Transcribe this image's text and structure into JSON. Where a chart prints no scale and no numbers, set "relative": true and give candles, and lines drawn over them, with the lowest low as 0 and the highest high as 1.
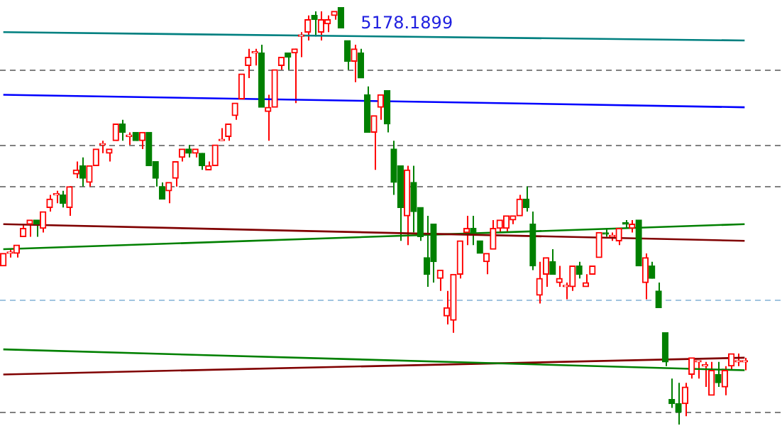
{
  "chart_data": {
    "type": "candlestick",
    "relative": true,
    "legend": false,
    "categories": [
      null,
      null,
      null,
      null,
      null,
      null,
      null,
      null,
      null,
      null,
      null,
      null,
      null,
      null,
      null,
      null,
      null,
      null,
      null,
      null,
      null,
      null,
      null,
      null,
      null,
      null,
      null,
      null,
      null,
      null,
      null,
      null,
      null,
      null,
      null,
      null,
      null,
      null,
      null,
      null,
      null,
      null,
      null,
      null,
      null,
      null,
      null,
      null,
      null,
      null,
      null,
      null,
      null,
      null,
      null,
      null,
      null,
      null,
      null,
      null,
      null,
      null,
      null,
      null,
      null,
      null,
      null,
      null,
      null,
      null,
      null,
      null,
      null,
      null,
      null,
      null,
      null,
      null,
      null,
      null,
      null,
      null,
      null,
      null,
      null,
      null,
      null,
      null,
      null,
      null,
      null,
      null,
      null,
      null,
      null,
      null,
      null,
      null,
      null,
      null,
      null,
      null,
      null,
      null,
      null,
      null,
      null,
      null,
      null,
      null,
      null,
      null,
      null
    ],
    "ohlc": [
      [
        0.38,
        0.41,
        0.38,
        0.41
      ],
      [
        0.41,
        0.42,
        0.4,
        0.41
      ],
      [
        0.41,
        0.43,
        0.4,
        0.43
      ],
      [
        0.45,
        0.48,
        0.45,
        0.47
      ],
      [
        0.48,
        0.49,
        0.45,
        0.49
      ],
      [
        0.49,
        0.49,
        0.45,
        0.48
      ],
      [
        0.47,
        0.51,
        0.46,
        0.51
      ],
      [
        0.52,
        0.55,
        0.51,
        0.54
      ],
      [
        0.55,
        0.56,
        0.53,
        0.55
      ],
      [
        0.55,
        0.56,
        0.52,
        0.53
      ],
      [
        0.52,
        0.57,
        0.5,
        0.57
      ],
      [
        0.6,
        0.63,
        0.59,
        0.61
      ],
      [
        0.62,
        0.64,
        0.57,
        0.59
      ],
      [
        0.58,
        0.62,
        0.57,
        0.62
      ],
      [
        0.62,
        0.66,
        0.62,
        0.66
      ],
      [
        0.67,
        0.68,
        0.65,
        0.67
      ],
      [
        0.65,
        0.66,
        0.63,
        0.66
      ],
      [
        0.68,
        0.72,
        0.68,
        0.72
      ],
      [
        0.72,
        0.73,
        0.68,
        0.7
      ],
      [
        0.69,
        0.7,
        0.67,
        0.69
      ],
      [
        0.7,
        0.7,
        0.68,
        0.68
      ],
      [
        0.68,
        0.7,
        0.66,
        0.7
      ],
      [
        0.7,
        0.7,
        0.62,
        0.62
      ],
      [
        0.63,
        0.63,
        0.57,
        0.59
      ],
      [
        0.57,
        0.58,
        0.54,
        0.54
      ],
      [
        0.56,
        0.58,
        0.53,
        0.58
      ],
      [
        0.59,
        0.63,
        0.57,
        0.63
      ],
      [
        0.64,
        0.66,
        0.63,
        0.66
      ],
      [
        0.66,
        0.67,
        0.64,
        0.65
      ],
      [
        0.65,
        0.66,
        0.64,
        0.66
      ],
      [
        0.65,
        0.65,
        0.61,
        0.62
      ],
      [
        0.61,
        0.63,
        0.61,
        0.62
      ],
      [
        0.62,
        0.67,
        0.62,
        0.67
      ],
      [
        0.68,
        0.71,
        0.68,
        0.68
      ],
      [
        0.69,
        0.72,
        0.68,
        0.72
      ],
      [
        0.74,
        0.77,
        0.73,
        0.77
      ],
      [
        0.78,
        0.84,
        0.78,
        0.84
      ],
      [
        0.86,
        0.9,
        0.83,
        0.88
      ],
      [
        0.89,
        0.9,
        0.86,
        0.89
      ],
      [
        0.89,
        0.91,
        0.76,
        0.76
      ],
      [
        0.75,
        0.79,
        0.68,
        0.76
      ],
      [
        0.76,
        0.85,
        0.76,
        0.85
      ],
      [
        0.86,
        0.88,
        0.85,
        0.88
      ],
      [
        0.89,
        0.89,
        0.85,
        0.88
      ],
      [
        0.89,
        0.9,
        0.77,
        0.9
      ],
      [
        0.93,
        0.94,
        0.88,
        0.93
      ],
      [
        0.94,
        0.98,
        0.92,
        0.97
      ],
      [
        0.98,
        0.99,
        0.93,
        0.97
      ],
      [
        0.94,
        0.99,
        0.92,
        0.97
      ],
      [
        0.96,
        0.98,
        0.94,
        0.97
      ],
      [
        0.98,
        0.99,
        0.97,
        0.99
      ],
      [
        1.0,
        1.0,
        0.95,
        0.95
      ],
      [
        0.92,
        0.92,
        0.85,
        0.87
      ],
      [
        0.87,
        0.91,
        0.82,
        0.9
      ],
      [
        0.89,
        0.9,
        0.83,
        0.83
      ],
      [
        0.79,
        0.81,
        0.7,
        0.7
      ],
      [
        0.7,
        0.74,
        0.61,
        0.74
      ],
      [
        0.76,
        0.79,
        0.73,
        0.79
      ],
      [
        0.8,
        0.8,
        0.7,
        0.72
      ],
      [
        0.66,
        0.68,
        0.55,
        0.58
      ],
      [
        0.62,
        0.62,
        0.44,
        0.52
      ],
      [
        0.5,
        0.62,
        0.43,
        0.61
      ],
      [
        0.58,
        0.62,
        0.46,
        0.51
      ],
      [
        0.52,
        0.52,
        0.44,
        0.45
      ],
      [
        0.4,
        0.5,
        0.33,
        0.36
      ],
      [
        0.48,
        0.48,
        0.34,
        0.39
      ],
      [
        0.35,
        0.37,
        0.32,
        0.37
      ],
      [
        0.26,
        0.32,
        0.24,
        0.28
      ],
      [
        0.25,
        0.36,
        0.22,
        0.36
      ],
      [
        0.36,
        0.44,
        0.35,
        0.44
      ],
      [
        0.46,
        0.5,
        0.43,
        0.47
      ],
      [
        0.47,
        0.5,
        0.43,
        0.46
      ],
      [
        0.44,
        0.44,
        0.41,
        0.41
      ],
      [
        0.39,
        0.41,
        0.36,
        0.41
      ],
      [
        0.42,
        0.49,
        0.42,
        0.47
      ],
      [
        0.47,
        0.49,
        0.46,
        0.49
      ],
      [
        0.47,
        0.5,
        0.46,
        0.5
      ],
      [
        0.49,
        0.5,
        0.48,
        0.5
      ],
      [
        0.5,
        0.55,
        0.5,
        0.54
      ],
      [
        0.54,
        0.57,
        0.51,
        0.52
      ],
      [
        0.48,
        0.51,
        0.37,
        0.38
      ],
      [
        0.31,
        0.39,
        0.29,
        0.35
      ],
      [
        0.36,
        0.4,
        0.33,
        0.4
      ],
      [
        0.39,
        0.42,
        0.36,
        0.36
      ],
      [
        0.34,
        0.38,
        0.33,
        0.35
      ],
      [
        0.33,
        0.34,
        0.3,
        0.33
      ],
      [
        0.33,
        0.38,
        0.32,
        0.38
      ],
      [
        0.38,
        0.39,
        0.35,
        0.36
      ],
      [
        0.33,
        0.36,
        0.33,
        0.34
      ],
      [
        0.36,
        0.38,
        0.36,
        0.38
      ],
      [
        0.4,
        0.46,
        0.4,
        0.46
      ],
      [
        0.459,
        0.47,
        0.45,
        0.456
      ],
      [
        0.45,
        0.46,
        0.44,
        0.45
      ],
      [
        0.44,
        0.47,
        0.43,
        0.47
      ],
      [
        0.483,
        0.49,
        0.47,
        0.48
      ],
      [
        0.47,
        0.49,
        0.46,
        0.48
      ],
      [
        0.49,
        0.49,
        0.38,
        0.38
      ],
      [
        0.34,
        0.41,
        0.3,
        0.4
      ],
      [
        0.38,
        0.39,
        0.35,
        0.35
      ],
      [
        0.32,
        0.34,
        0.28,
        0.28
      ],
      [
        0.22,
        0.22,
        0.14,
        0.15
      ],
      [
        0.06,
        0.11,
        0.04,
        0.05
      ],
      [
        0.05,
        0.1,
        0.0,
        0.03
      ],
      [
        0.05,
        0.1,
        0.02,
        0.09
      ],
      [
        0.12,
        0.16,
        0.11,
        0.16
      ],
      [
        0.15,
        0.15,
        0.11,
        0.15
      ],
      [
        0.14,
        0.15,
        0.09,
        0.14
      ],
      [
        0.07,
        0.15,
        0.07,
        0.13
      ],
      [
        0.12,
        0.15,
        0.09,
        0.1
      ],
      [
        0.09,
        0.14,
        0.07,
        0.13
      ],
      [
        0.14,
        0.17,
        0.13,
        0.17
      ],
      [
        0.15,
        0.17,
        0.14,
        0.15
      ],
      [
        0.15,
        0.16,
        0.13,
        0.15
      ]
    ],
    "colors": [
      "#ff0000",
      "#ff0000",
      "#ff0000",
      "#ff0000",
      "#ff0000",
      "#008000",
      "#ff0000",
      "#ff0000",
      "#ff0000",
      "#008000",
      "#ff0000",
      "#ff0000",
      "#008000",
      "#ff0000",
      "#ff0000",
      "#ff0000",
      "#ff0000",
      "#ff0000",
      "#008000",
      "#ff0000",
      "#008000",
      "#ff0000",
      "#008000",
      "#008000",
      "#008000",
      "#ff0000",
      "#ff0000",
      "#ff0000",
      "#008000",
      "#ff0000",
      "#008000",
      "#ff0000",
      "#ff0000",
      "#ff0000",
      "#ff0000",
      "#ff0000",
      "#ff0000",
      "#ff0000",
      "#ff0000",
      "#008000",
      "#ff0000",
      "#ff0000",
      "#ff0000",
      "#008000",
      "#ff0000",
      "#ff0000",
      "#ff0000",
      "#008000",
      "#ff0000",
      "#ff0000",
      "#ff0000",
      "#008000",
      "#008000",
      "#ff0000",
      "#008000",
      "#008000",
      "#ff0000",
      "#ff0000",
      "#008000",
      "#008000",
      "#008000",
      "#ff0000",
      "#008000",
      "#008000",
      "#008000",
      "#008000",
      "#ff0000",
      "#ff0000",
      "#ff0000",
      "#ff0000",
      "#ff0000",
      "#008000",
      "#008000",
      "#ff0000",
      "#ff0000",
      "#ff0000",
      "#ff0000",
      "#ff0000",
      "#ff0000",
      "#008000",
      "#008000",
      "#ff0000",
      "#ff0000",
      "#008000",
      "#ff0000",
      "#ff0000",
      "#ff0000",
      "#008000",
      "#ff0000",
      "#ff0000",
      "#ff0000",
      "#008000",
      "#ff0000",
      "#ff0000",
      "#008000",
      "#ff0000",
      "#008000",
      "#ff0000",
      "#008000",
      "#008000",
      "#008000",
      "#008000",
      "#008000",
      "#ff0000",
      "#ff0000",
      "#ff0000",
      "#ff0000",
      "#ff0000",
      "#008000",
      "#ff0000",
      "#ff0000",
      "#ff0000",
      "#ff0000"
    ],
    "series": [
      {
        "type": "line",
        "color": "#008080",
        "values": [
          0.94,
          null,
          null,
          null,
          null,
          null,
          null,
          null,
          null,
          null,
          null,
          null,
          null,
          null,
          null,
          null,
          null,
          null,
          null,
          null,
          null,
          null,
          null,
          null,
          null,
          null,
          null,
          null,
          null,
          null,
          null,
          null,
          null,
          null,
          null,
          null,
          null,
          null,
          null,
          null,
          null,
          null,
          null,
          null,
          null,
          null,
          null,
          null,
          null,
          null,
          null,
          null,
          null,
          null,
          null,
          null,
          null,
          null,
          null,
          null,
          null,
          null,
          null,
          null,
          null,
          null,
          null,
          null,
          null,
          null,
          null,
          null,
          null,
          null,
          null,
          null,
          null,
          null,
          null,
          null,
          null,
          null,
          null,
          null,
          null,
          null,
          null,
          null,
          null,
          null,
          null,
          null,
          null,
          null,
          null,
          null,
          null,
          null,
          null,
          null,
          null,
          null,
          null,
          null,
          null,
          null,
          null,
          null,
          null,
          null,
          null,
          null,
          0.92
        ]
      },
      {
        "type": "line",
        "color": "#0000ff",
        "values": [
          0.79,
          null,
          null,
          null,
          null,
          null,
          null,
          null,
          null,
          null,
          null,
          null,
          null,
          null,
          null,
          null,
          null,
          null,
          null,
          null,
          null,
          null,
          null,
          null,
          null,
          null,
          null,
          null,
          null,
          null,
          null,
          null,
          null,
          null,
          null,
          null,
          null,
          null,
          null,
          null,
          null,
          null,
          null,
          null,
          null,
          null,
          null,
          null,
          null,
          null,
          null,
          null,
          null,
          null,
          null,
          null,
          null,
          null,
          null,
          null,
          null,
          null,
          null,
          null,
          null,
          null,
          null,
          null,
          null,
          null,
          null,
          null,
          null,
          null,
          null,
          null,
          null,
          null,
          null,
          null,
          null,
          null,
          null,
          null,
          null,
          null,
          null,
          null,
          null,
          null,
          null,
          null,
          null,
          null,
          null,
          null,
          null,
          null,
          null,
          null,
          null,
          null,
          null,
          null,
          null,
          null,
          null,
          null,
          null,
          null,
          null,
          null,
          0.76
        ]
      },
      {
        "type": "line",
        "color": "#800000",
        "values": [
          0.48,
          null,
          null,
          null,
          null,
          null,
          null,
          null,
          null,
          null,
          null,
          null,
          null,
          null,
          null,
          null,
          null,
          null,
          null,
          null,
          null,
          null,
          null,
          null,
          null,
          null,
          null,
          null,
          null,
          null,
          null,
          null,
          null,
          null,
          null,
          null,
          null,
          null,
          null,
          null,
          null,
          null,
          null,
          null,
          null,
          null,
          null,
          null,
          null,
          null,
          null,
          null,
          null,
          null,
          null,
          null,
          null,
          null,
          null,
          null,
          null,
          null,
          null,
          null,
          null,
          null,
          null,
          null,
          null,
          null,
          null,
          null,
          null,
          null,
          null,
          null,
          null,
          null,
          null,
          null,
          null,
          null,
          null,
          null,
          null,
          null,
          null,
          null,
          null,
          null,
          null,
          null,
          null,
          null,
          null,
          null,
          null,
          null,
          null,
          null,
          null,
          null,
          null,
          null,
          null,
          null,
          null,
          null,
          null,
          null,
          null,
          null,
          0.44
        ]
      },
      {
        "type": "line",
        "color": "#008000",
        "values": [
          0.42,
          null,
          null,
          null,
          null,
          null,
          null,
          null,
          null,
          null,
          null,
          null,
          null,
          null,
          null,
          null,
          null,
          null,
          null,
          null,
          null,
          null,
          null,
          null,
          null,
          null,
          null,
          null,
          null,
          null,
          null,
          null,
          null,
          null,
          null,
          null,
          null,
          null,
          null,
          null,
          null,
          null,
          null,
          null,
          null,
          null,
          null,
          null,
          null,
          null,
          null,
          null,
          null,
          null,
          null,
          null,
          null,
          null,
          null,
          null,
          null,
          null,
          null,
          null,
          null,
          null,
          null,
          null,
          null,
          null,
          null,
          null,
          null,
          null,
          null,
          null,
          null,
          null,
          null,
          null,
          null,
          null,
          null,
          null,
          null,
          null,
          null,
          null,
          null,
          null,
          null,
          null,
          null,
          null,
          null,
          null,
          null,
          null,
          null,
          null,
          null,
          null,
          null,
          null,
          null,
          null,
          null,
          null,
          null,
          null,
          null,
          null,
          0.48
        ]
      },
      {
        "type": "line",
        "color": "#008000",
        "values": [
          0.18,
          null,
          null,
          null,
          null,
          null,
          null,
          null,
          null,
          null,
          null,
          null,
          null,
          null,
          null,
          null,
          null,
          null,
          null,
          null,
          null,
          null,
          null,
          null,
          null,
          null,
          null,
          null,
          null,
          null,
          null,
          null,
          null,
          null,
          null,
          null,
          null,
          null,
          null,
          null,
          null,
          null,
          null,
          null,
          null,
          null,
          null,
          null,
          null,
          null,
          null,
          null,
          null,
          null,
          null,
          null,
          null,
          null,
          null,
          null,
          null,
          null,
          null,
          null,
          null,
          null,
          null,
          null,
          null,
          null,
          null,
          null,
          null,
          null,
          null,
          null,
          null,
          null,
          null,
          null,
          null,
          null,
          null,
          null,
          null,
          null,
          null,
          null,
          null,
          null,
          null,
          null,
          null,
          null,
          null,
          null,
          null,
          null,
          null,
          null,
          null,
          null,
          null,
          null,
          null,
          null,
          null,
          null,
          null,
          null,
          null,
          null,
          0.13
        ]
      },
      {
        "type": "line",
        "color": "#800000",
        "values": [
          0.12,
          null,
          null,
          null,
          null,
          null,
          null,
          null,
          null,
          null,
          null,
          null,
          null,
          null,
          null,
          null,
          null,
          null,
          null,
          null,
          null,
          null,
          null,
          null,
          null,
          null,
          null,
          null,
          null,
          null,
          null,
          null,
          null,
          null,
          null,
          null,
          null,
          null,
          null,
          null,
          null,
          null,
          null,
          null,
          null,
          null,
          null,
          null,
          null,
          null,
          null,
          null,
          null,
          null,
          null,
          null,
          null,
          null,
          null,
          null,
          null,
          null,
          null,
          null,
          null,
          null,
          null,
          null,
          null,
          null,
          null,
          null,
          null,
          null,
          null,
          null,
          null,
          null,
          null,
          null,
          null,
          null,
          null,
          null,
          null,
          null,
          null,
          null,
          null,
          null,
          null,
          null,
          null,
          null,
          null,
          null,
          null,
          null,
          null,
          null,
          null,
          null,
          null,
          null,
          null,
          null,
          null,
          null,
          null,
          null,
          null,
          null,
          0.16
        ]
      }
    ],
    "ref_lines": [
      {
        "axis": "y",
        "value": 0.85,
        "color": "#808080",
        "line_style": "dashed"
      },
      {
        "axis": "y",
        "value": 0.67,
        "color": "#808080",
        "line_style": "dashed"
      },
      {
        "axis": "y",
        "value": 0.57,
        "color": "#808080",
        "line_style": "dashed"
      },
      {
        "axis": "y",
        "value": 0.3,
        "color": "#a0c4e0",
        "line_style": "dashed"
      },
      {
        "axis": "y",
        "value": 0.03,
        "color": "#808080",
        "line_style": "dashed"
      }
    ],
    "annotations": [
      "5178.1899"
    ]
  }
}
